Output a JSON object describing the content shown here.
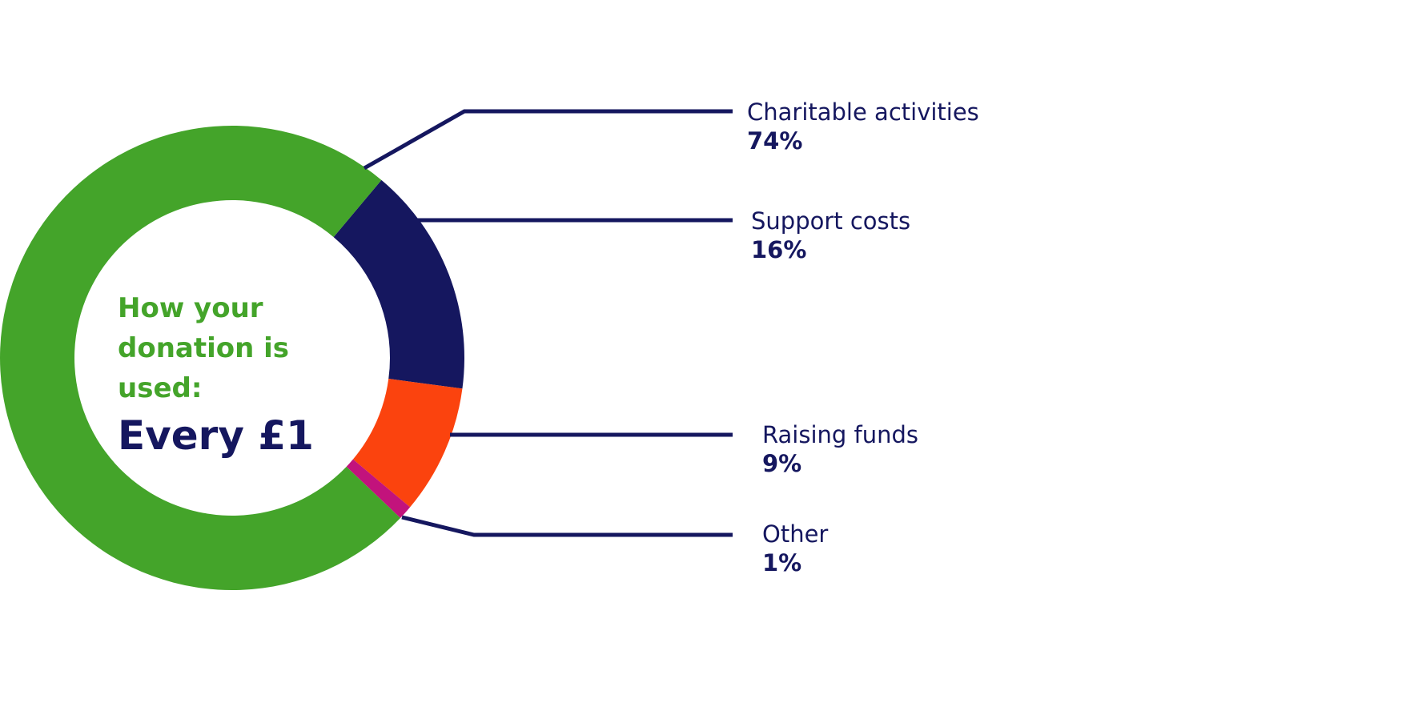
{
  "center": {
    "line1": "How your",
    "line2": "donation is used:",
    "line3": "Every £1"
  },
  "colors": {
    "text": "#15175f",
    "leader": "#15175f",
    "center_heading": "#44a42a"
  },
  "chart_data": {
    "type": "pie",
    "style": "donut",
    "unit": "%",
    "slices": [
      {
        "label": "Charitable activities",
        "value": 74,
        "value_label": "74%",
        "color": "#44a42a"
      },
      {
        "label": "Support costs",
        "value": 16,
        "value_label": "16%",
        "color": "#15175f"
      },
      {
        "label": "Raising funds",
        "value": 9,
        "value_label": "9%",
        "color": "#fb430e"
      },
      {
        "label": "Other",
        "value": 1,
        "value_label": "1%",
        "color": "#c2137c"
      }
    ]
  }
}
